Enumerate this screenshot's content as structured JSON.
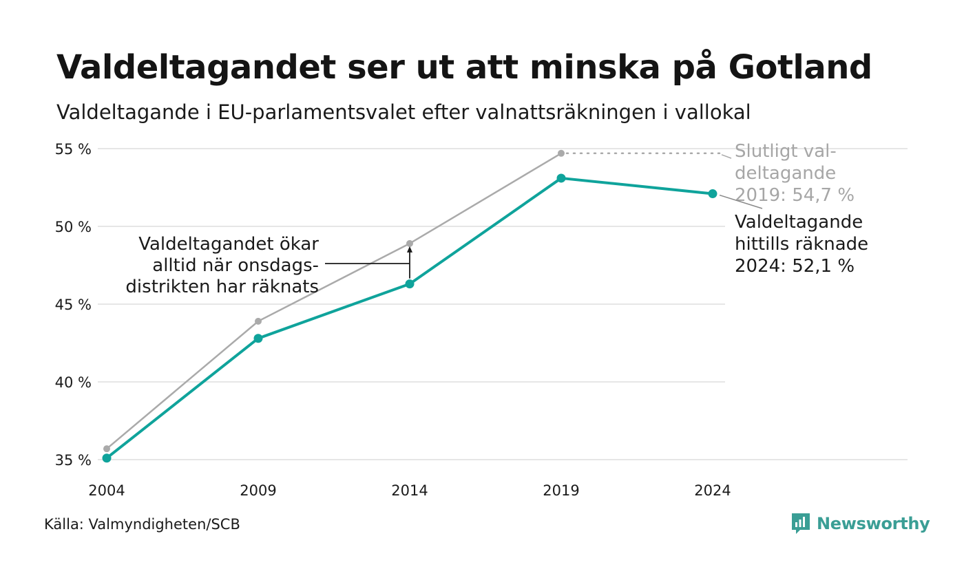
{
  "title": "Valdeltagandet ser ut att minska på Gotland",
  "subtitle": "Valdeltagande i EU-parlamentsvalet efter valnattsräkningen i vallokal",
  "source": "Källa: Valmyndigheten/SCB",
  "brand": {
    "name": "Newsworthy",
    "icon": "newsworthy-logo-icon",
    "color": "#3a9e95"
  },
  "colors": {
    "primary": "#0fa39b",
    "secondary": "#aaaaaa",
    "grid": "#e6e6e6",
    "text": "#1a1a1a"
  },
  "annotations": {
    "callout": [
      "Valdeltagandet ökar",
      "alltid när onsdags-",
      "distrikten har räknats"
    ],
    "final_2019": [
      "Slutligt val-",
      "deltagande",
      "2019: 54,7 %"
    ],
    "counted_2024": [
      "Valdeltagande",
      "hittills räknade",
      "2024: 52,1 %"
    ]
  },
  "chart_data": {
    "type": "line",
    "x": [
      2004,
      2009,
      2014,
      2019,
      2024
    ],
    "ylim": [
      35,
      55
    ],
    "yticks": [
      35,
      40,
      45,
      50,
      55
    ],
    "ytick_labels": [
      "35 %",
      "40 %",
      "45 %",
      "50 %",
      "55 %"
    ],
    "xtick_labels": [
      "2004",
      "2009",
      "2014",
      "2019",
      "2024"
    ],
    "grid": true,
    "series": [
      {
        "name": "Slutligt valdeltagande",
        "color": "#aaaaaa",
        "values": [
          35.7,
          43.9,
          48.9,
          54.7,
          null
        ]
      },
      {
        "name": "Valdeltagande efter valnattsräkningen",
        "color": "#0fa39b",
        "values": [
          35.1,
          42.8,
          46.3,
          53.1,
          52.1
        ]
      }
    ]
  }
}
